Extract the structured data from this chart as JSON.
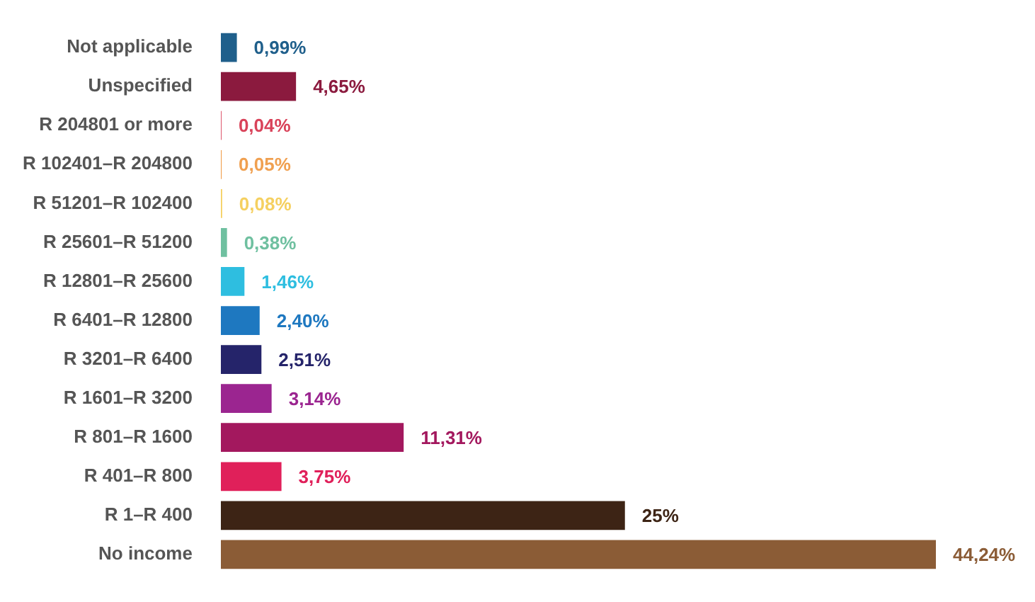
{
  "chart_data": {
    "type": "bar",
    "orientation": "horizontal",
    "grid": false,
    "legend": false,
    "categories": [
      "Not applicable",
      "Unspecified",
      "R 204801 or more",
      "R 102401–R 204800",
      "R 51201–R 102400",
      "R 25601–R 51200",
      "R 12801–R 25600",
      "R 6401–R 12800",
      "R 3201–R 6400",
      "R 1601–R 3200",
      "R 801–R 1600",
      "R 401–R 800",
      "R 1–R 400",
      "No income"
    ],
    "values": [
      0.99,
      4.65,
      0.04,
      0.05,
      0.08,
      0.38,
      1.46,
      2.4,
      2.51,
      3.14,
      11.31,
      3.75,
      25,
      44.24
    ],
    "value_labels": [
      "0,99%",
      "4,65%",
      "0,04%",
      "0,05%",
      "0,08%",
      "0,38%",
      "1,46%",
      "2,40%",
      "2,51%",
      "3,14%",
      "11,31%",
      "3,75%",
      "25%",
      "44,24%"
    ],
    "colors": [
      "#1f5f8b",
      "#8b1a3e",
      "#d9435a",
      "#f0a050",
      "#f5d060",
      "#6fc0a0",
      "#2ebee0",
      "#1e78c0",
      "#25246a",
      "#9b2590",
      "#a3185e",
      "#e0205a",
      "#3d2415",
      "#8b5c36"
    ]
  }
}
